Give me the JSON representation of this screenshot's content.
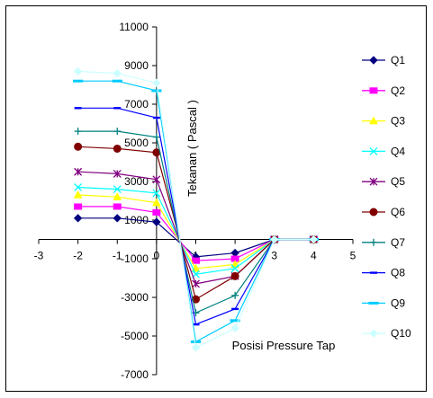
{
  "chart_data": {
    "type": "line",
    "xlabel": "Posisi Pressure Tap",
    "ylabel": "Tekanan ( Pascal )",
    "xlim": [
      -3,
      5
    ],
    "ylim": [
      -7000,
      11000
    ],
    "xticks": [
      -3,
      -2,
      -1,
      0,
      1,
      2,
      3,
      4,
      5
    ],
    "yticks": [
      11000,
      9000,
      7000,
      5000,
      3000,
      1000,
      -1000,
      -3000,
      -5000,
      -7000
    ],
    "grid": false,
    "legend_position": "right",
    "x": [
      -2,
      -1,
      0,
      1,
      2,
      3,
      4
    ],
    "series": [
      {
        "name": "Q1",
        "color": "#000080",
        "marker": "diamond",
        "values": [
          1100,
          1100,
          900,
          -900,
          -700,
          0,
          0
        ]
      },
      {
        "name": "Q2",
        "color": "#ff00ff",
        "marker": "square",
        "values": [
          1700,
          1700,
          1400,
          -1100,
          -1000,
          0,
          0
        ]
      },
      {
        "name": "Q3",
        "color": "#ffff00",
        "marker": "triangle",
        "values": [
          2300,
          2200,
          1900,
          -1500,
          -1300,
          0,
          0
        ]
      },
      {
        "name": "Q4",
        "color": "#00ffff",
        "marker": "x",
        "values": [
          2700,
          2600,
          2400,
          -1800,
          -1500,
          0,
          0
        ]
      },
      {
        "name": "Q5",
        "color": "#800080",
        "marker": "asterisk",
        "values": [
          3500,
          3400,
          3100,
          -2300,
          -1900,
          0,
          0
        ]
      },
      {
        "name": "Q6",
        "color": "#800000",
        "marker": "circle",
        "values": [
          4800,
          4700,
          4500,
          -3100,
          -1900,
          0,
          0
        ]
      },
      {
        "name": "Q7",
        "color": "#008080",
        "marker": "plus",
        "values": [
          5600,
          5600,
          5300,
          -3800,
          -2900,
          0,
          0
        ]
      },
      {
        "name": "Q8",
        "color": "#0000ff",
        "marker": "dash",
        "values": [
          6800,
          6800,
          6300,
          -4400,
          -3600,
          0,
          0
        ]
      },
      {
        "name": "Q9",
        "color": "#00ccff",
        "marker": "longdash",
        "values": [
          8200,
          8200,
          7700,
          -5300,
          -4200,
          0,
          0
        ]
      },
      {
        "name": "Q10",
        "color": "#ccffff",
        "marker": "diamond",
        "values": [
          8700,
          8600,
          8100,
          -5600,
          -4600,
          0,
          0
        ]
      }
    ]
  }
}
